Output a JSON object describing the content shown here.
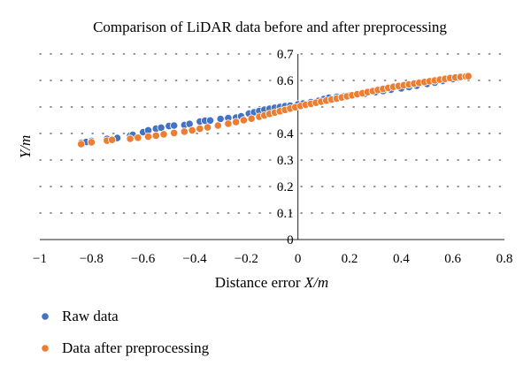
{
  "chart_data": {
    "type": "scatter",
    "title": "Comparison of LiDAR data before and after preprocessing",
    "xlabel_prefix": "Distance error ",
    "xlabel_var": "X/m",
    "ylabel": "Y/m",
    "xlim": [
      -1,
      0.8
    ],
    "ylim": [
      0,
      0.7
    ],
    "x_ticks": [
      "−1",
      "−0.8",
      "−0.6",
      "−0.4",
      "−0.2",
      "0",
      "0.2",
      "0.4",
      "0.6",
      "0.8"
    ],
    "y_ticks": [
      "0",
      "0.1",
      "0.2",
      "0.3",
      "0.4",
      "0.5",
      "0.6",
      "0.7"
    ],
    "grid": "horizontal dotted",
    "legend_position": "bottom-left",
    "series": [
      {
        "name": "Raw data",
        "color": "#4472C4",
        "points": [
          [
            -0.84,
            0.365
          ],
          [
            -0.82,
            0.368
          ],
          [
            -0.8,
            0.372
          ],
          [
            -0.74,
            0.38
          ],
          [
            -0.7,
            0.383
          ],
          [
            -0.65,
            0.392
          ],
          [
            -0.64,
            0.395
          ],
          [
            -0.6,
            0.405
          ],
          [
            -0.58,
            0.412
          ],
          [
            -0.55,
            0.418
          ],
          [
            -0.53,
            0.422
          ],
          [
            -0.5,
            0.428
          ],
          [
            -0.48,
            0.43
          ],
          [
            -0.44,
            0.432
          ],
          [
            -0.42,
            0.436
          ],
          [
            -0.38,
            0.445
          ],
          [
            -0.36,
            0.448
          ],
          [
            -0.34,
            0.449
          ],
          [
            -0.3,
            0.455
          ],
          [
            -0.27,
            0.458
          ],
          [
            -0.24,
            0.46
          ],
          [
            -0.22,
            0.465
          ],
          [
            -0.19,
            0.475
          ],
          [
            -0.17,
            0.48
          ],
          [
            -0.15,
            0.485
          ],
          [
            -0.13,
            0.49
          ],
          [
            -0.11,
            0.493
          ],
          [
            -0.09,
            0.497
          ],
          [
            -0.07,
            0.5
          ],
          [
            -0.05,
            0.503
          ],
          [
            -0.03,
            0.505
          ],
          [
            0.0,
            0.51
          ],
          [
            0.02,
            0.513
          ],
          [
            0.05,
            0.518
          ],
          [
            0.08,
            0.523
          ],
          [
            0.1,
            0.53
          ],
          [
            0.12,
            0.535
          ],
          [
            0.15,
            0.538
          ],
          [
            0.18,
            0.54
          ],
          [
            0.2,
            0.543
          ],
          [
            0.23,
            0.546
          ],
          [
            0.26,
            0.55
          ],
          [
            0.3,
            0.556
          ],
          [
            0.33,
            0.56
          ],
          [
            0.36,
            0.565
          ],
          [
            0.4,
            0.57
          ],
          [
            0.43,
            0.575
          ],
          [
            0.46,
            0.58
          ],
          [
            0.5,
            0.587
          ],
          [
            0.53,
            0.592
          ],
          [
            0.56,
            0.598
          ],
          [
            0.6,
            0.605
          ],
          [
            0.63,
            0.612
          ],
          [
            0.65,
            0.616
          ],
          [
            0.66,
            0.618
          ]
        ]
      },
      {
        "name": "Data after preprocessing",
        "color": "#ED7D31",
        "points": [
          [
            -0.84,
            0.36
          ],
          [
            -0.8,
            0.367
          ],
          [
            -0.74,
            0.373
          ],
          [
            -0.72,
            0.376
          ],
          [
            -0.65,
            0.38
          ],
          [
            -0.62,
            0.384
          ],
          [
            -0.58,
            0.388
          ],
          [
            -0.55,
            0.392
          ],
          [
            -0.52,
            0.397
          ],
          [
            -0.48,
            0.402
          ],
          [
            -0.44,
            0.407
          ],
          [
            -0.41,
            0.412
          ],
          [
            -0.38,
            0.418
          ],
          [
            -0.35,
            0.423
          ],
          [
            -0.31,
            0.43
          ],
          [
            -0.27,
            0.437
          ],
          [
            -0.24,
            0.443
          ],
          [
            -0.21,
            0.45
          ],
          [
            -0.18,
            0.456
          ],
          [
            -0.15,
            0.463
          ],
          [
            -0.13,
            0.468
          ],
          [
            -0.11,
            0.474
          ],
          [
            -0.09,
            0.479
          ],
          [
            -0.07,
            0.484
          ],
          [
            -0.05,
            0.489
          ],
          [
            -0.03,
            0.494
          ],
          [
            -0.01,
            0.499
          ],
          [
            0.01,
            0.504
          ],
          [
            0.03,
            0.508
          ],
          [
            0.05,
            0.512
          ],
          [
            0.07,
            0.516
          ],
          [
            0.09,
            0.52
          ],
          [
            0.11,
            0.524
          ],
          [
            0.13,
            0.528
          ],
          [
            0.15,
            0.532
          ],
          [
            0.17,
            0.536
          ],
          [
            0.19,
            0.54
          ],
          [
            0.21,
            0.544
          ],
          [
            0.23,
            0.548
          ],
          [
            0.25,
            0.552
          ],
          [
            0.27,
            0.556
          ],
          [
            0.29,
            0.56
          ],
          [
            0.31,
            0.564
          ],
          [
            0.33,
            0.568
          ],
          [
            0.35,
            0.572
          ],
          [
            0.37,
            0.576
          ],
          [
            0.39,
            0.579
          ],
          [
            0.41,
            0.582
          ],
          [
            0.43,
            0.585
          ],
          [
            0.45,
            0.588
          ],
          [
            0.47,
            0.591
          ],
          [
            0.49,
            0.594
          ],
          [
            0.51,
            0.597
          ],
          [
            0.53,
            0.6
          ],
          [
            0.55,
            0.603
          ],
          [
            0.57,
            0.606
          ],
          [
            0.59,
            0.609
          ],
          [
            0.61,
            0.611
          ],
          [
            0.63,
            0.613
          ],
          [
            0.65,
            0.615
          ],
          [
            0.66,
            0.616
          ]
        ]
      }
    ]
  }
}
